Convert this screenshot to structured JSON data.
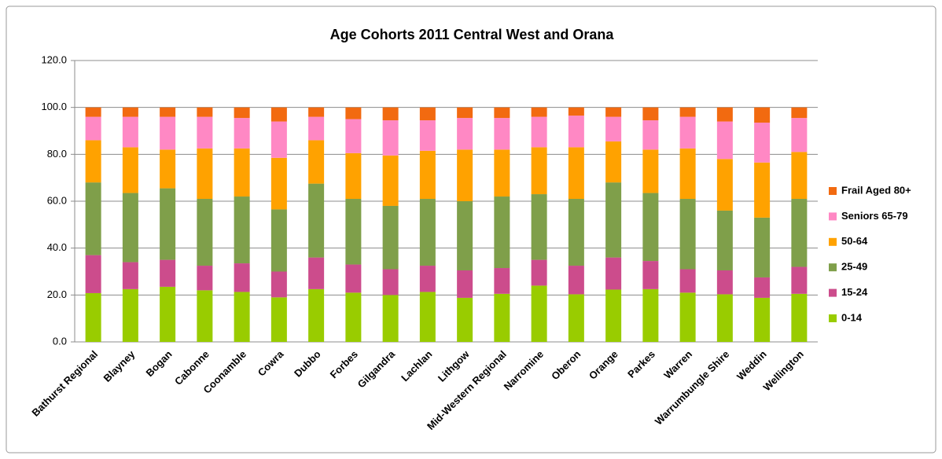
{
  "chart_data": {
    "type": "stacked_bar",
    "title": "Age Cohorts 2011 Central West and Orana",
    "categories": [
      "Bathurst Regional",
      "Blayney",
      "Bogan",
      "Cabonne",
      "Coonamble",
      "Cowra",
      "Dubbo",
      "Forbes",
      "Gilgandra",
      "Lachlan",
      "Lithgow",
      "Mid-Western Regional",
      "Narromine",
      "Oberon",
      "Orange",
      "Parkes",
      "Warren",
      "Warrumbungle Shire",
      "Weddin",
      "Wellington"
    ],
    "series": [
      {
        "name": "0-14",
        "color": "#99cc00",
        "values": [
          20.8,
          22.5,
          23.5,
          22,
          21.3,
          19,
          22.5,
          21,
          20,
          21.3,
          18.8,
          20.5,
          24,
          20.3,
          22.3,
          22.5,
          21,
          20.3,
          18.8,
          20.5
        ]
      },
      {
        "name": "15-24",
        "color": "#cc4c8c",
        "values": [
          16.2,
          11.5,
          11.5,
          10.5,
          12.2,
          11,
          13.5,
          12,
          11,
          11.2,
          11.7,
          11,
          11,
          12.2,
          13.7,
          12,
          10,
          10.2,
          8.7,
          11.5
        ]
      },
      {
        "name": "25-49",
        "color": "#7f9f4a",
        "values": [
          31,
          29.5,
          30.5,
          28.5,
          28.5,
          26.5,
          31.5,
          28,
          27,
          28.5,
          29.5,
          30.5,
          28,
          28.5,
          32,
          29,
          30,
          25.5,
          25.5,
          29
        ]
      },
      {
        "name": "50-64",
        "color": "#ffa200",
        "values": [
          18,
          19.5,
          16.5,
          21.5,
          20.5,
          22,
          18.5,
          19.5,
          21.5,
          20.5,
          22,
          20,
          20,
          22,
          17.5,
          18.5,
          21.5,
          22,
          23.5,
          20
        ]
      },
      {
        "name": "Seniors 65-79",
        "color": "#ff88c4",
        "values": [
          10,
          13,
          14,
          13.5,
          13,
          15.5,
          10,
          14.5,
          15,
          13,
          13.5,
          13.5,
          13,
          13.5,
          10.5,
          12.5,
          13.5,
          16,
          17,
          14.5
        ]
      },
      {
        "name": "Frail Aged 80+",
        "color": "#f26a10",
        "values": [
          4,
          4,
          4,
          4,
          4.5,
          6,
          4,
          5,
          5.5,
          5.5,
          4.5,
          4.5,
          4,
          3.5,
          4,
          5.5,
          4,
          6,
          6.5,
          4.5
        ]
      }
    ],
    "ylim": [
      0,
      120
    ],
    "yticks": [
      {
        "value": 0,
        "label": "0.0"
      },
      {
        "value": 20,
        "label": "20.0"
      },
      {
        "value": 40,
        "label": "40.0"
      },
      {
        "value": 60,
        "label": "60.0"
      },
      {
        "value": 80,
        "label": "80.0"
      },
      {
        "value": 100,
        "label": "100.0"
      },
      {
        "value": 120,
        "label": "120.0"
      }
    ],
    "grid": true,
    "legend": "right"
  }
}
